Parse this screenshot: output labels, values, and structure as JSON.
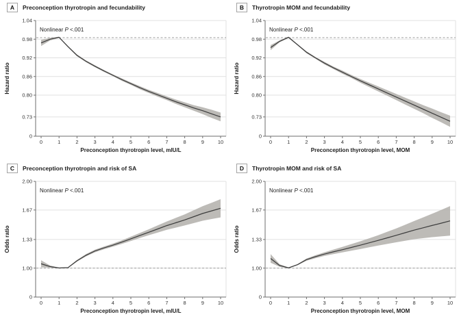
{
  "figure": {
    "name": "Thyrotropin, fecundability, and risk of SA — restricted cubic spline panels",
    "background": "#ffffff",
    "colors": {
      "curve": "#3c3c3c",
      "ci_band": "#b2afaa",
      "gridline": "#e0e0e0",
      "dashed_reference": "#9e9e9e",
      "axis": "#6e6e6e",
      "text": "#333333",
      "title_text": "#1c1c1c"
    },
    "panels": [
      {
        "letter": "A",
        "title": "Preconception thyrotropin and fecundability"
      },
      {
        "letter": "B",
        "title": "Thyrotropin MOM and fecundability"
      },
      {
        "letter": "C",
        "title": "Preconception thyrotropin and risk of SA"
      },
      {
        "letter": "D",
        "title": "Thyrotropin MOM and risk of SA"
      }
    ]
  },
  "chart_data": [
    {
      "panel": "A",
      "type": "line",
      "title": "Preconception thyrotropin and fecundability",
      "xlabel": "Preconception thyrotropin level, mIU/L",
      "ylabel": "Hazard ratio",
      "annotation": {
        "prefix": "Nonlinear",
        "p": "P",
        "suffix": "<.001"
      },
      "legend": "none",
      "grid": true,
      "xlim": [
        0,
        10
      ],
      "xticks": [
        "0",
        "1",
        "2",
        "3",
        "4",
        "5",
        "6",
        "7",
        "8",
        "9",
        "10"
      ],
      "yticks": [
        "1.04",
        "0.98",
        "0.92",
        "0.86",
        "0.80",
        "0.73"
      ],
      "zero_label": "0",
      "y_axis_break_to_zero": true,
      "ref_line": 0.985,
      "x": [
        0,
        0.5,
        1,
        1.5,
        2,
        2.5,
        3,
        3.5,
        4,
        4.5,
        5,
        5.5,
        6,
        6.5,
        7,
        7.5,
        8,
        8.5,
        9,
        9.5,
        10
      ],
      "y": [
        0.968,
        0.98,
        0.986,
        0.956,
        0.928,
        0.909,
        0.893,
        0.878,
        0.864,
        0.85,
        0.837,
        0.824,
        0.812,
        0.801,
        0.79,
        0.779,
        0.769,
        0.759,
        0.75,
        0.74,
        0.73
      ],
      "ci_lower": [
        0.958,
        0.976,
        0.984,
        0.954,
        0.925,
        0.906,
        0.89,
        0.875,
        0.861,
        0.846,
        0.833,
        0.819,
        0.807,
        0.795,
        0.784,
        0.772,
        0.761,
        0.75,
        0.739,
        0.727,
        0.716
      ],
      "ci_upper": [
        0.978,
        0.984,
        0.988,
        0.958,
        0.931,
        0.912,
        0.896,
        0.881,
        0.867,
        0.854,
        0.841,
        0.829,
        0.817,
        0.807,
        0.796,
        0.786,
        0.777,
        0.768,
        0.761,
        0.753,
        0.744
      ]
    },
    {
      "panel": "B",
      "type": "line",
      "title": "Thyrotropin MOM and fecundability",
      "xlabel": "Preconception thyrotropin level, MOM",
      "ylabel": "Hazard ratio",
      "annotation": {
        "prefix": "Nonlinear",
        "p": "P",
        "suffix": "<.001"
      },
      "legend": "none",
      "grid": true,
      "xlim": [
        0,
        10
      ],
      "xticks": [
        "0",
        "1",
        "2",
        "3",
        "4",
        "5",
        "6",
        "7",
        "8",
        "9",
        "10"
      ],
      "yticks": [
        "1.04",
        "0.98",
        "0.92",
        "0.86",
        "0.80",
        "0.73"
      ],
      "zero_label": "0",
      "y_axis_break_to_zero": true,
      "ref_line": 0.985,
      "x": [
        0,
        0.5,
        1,
        1.5,
        2,
        2.5,
        3,
        3.5,
        4,
        4.5,
        5,
        5.5,
        6,
        6.5,
        7,
        7.5,
        8,
        8.5,
        9,
        9.5,
        10
      ],
      "y": [
        0.953,
        0.973,
        0.986,
        0.962,
        0.938,
        0.92,
        0.903,
        0.888,
        0.874,
        0.86,
        0.846,
        0.833,
        0.82,
        0.807,
        0.794,
        0.781,
        0.768,
        0.755,
        0.742,
        0.729,
        0.716
      ],
      "ci_lower": [
        0.945,
        0.97,
        0.984,
        0.96,
        0.935,
        0.917,
        0.899,
        0.884,
        0.869,
        0.855,
        0.84,
        0.826,
        0.812,
        0.798,
        0.784,
        0.77,
        0.756,
        0.742,
        0.727,
        0.713,
        0.698
      ],
      "ci_upper": [
        0.961,
        0.976,
        0.988,
        0.964,
        0.941,
        0.923,
        0.907,
        0.892,
        0.879,
        0.865,
        0.852,
        0.84,
        0.828,
        0.816,
        0.804,
        0.792,
        0.78,
        0.768,
        0.757,
        0.745,
        0.734
      ]
    },
    {
      "panel": "C",
      "type": "line",
      "title": "Preconception thyrotropin and risk of SA",
      "xlabel": "Preconception thyrotropin level, mIU/L",
      "ylabel": "Odds ratio",
      "annotation": {
        "prefix": "Nonlinear",
        "p": "P",
        "suffix": "<.001"
      },
      "legend": "none",
      "grid": true,
      "xlim": [
        0,
        10
      ],
      "xticks": [
        "0",
        "1",
        "2",
        "3",
        "4",
        "5",
        "6",
        "7",
        "8",
        "9",
        "10"
      ],
      "yticks": [
        "2.00",
        "1.67",
        "1.33",
        "1.00"
      ],
      "zero_label": "0",
      "y_axis_break_to_zero": true,
      "ref_line": 1.0,
      "x": [
        0,
        0.5,
        1,
        1.5,
        2,
        2.5,
        3,
        3.5,
        4,
        4.5,
        5,
        5.5,
        6,
        6.5,
        7,
        7.5,
        8,
        8.5,
        9,
        9.5,
        10
      ],
      "y": [
        1.05,
        1.018,
        1.002,
        1.006,
        1.085,
        1.148,
        1.198,
        1.233,
        1.265,
        1.3,
        1.338,
        1.376,
        1.414,
        1.452,
        1.49,
        1.523,
        1.556,
        1.593,
        1.63,
        1.66,
        1.69
      ],
      "ci_lower": [
        1.01,
        1.006,
        0.998,
        1.002,
        1.075,
        1.135,
        1.183,
        1.217,
        1.247,
        1.279,
        1.313,
        1.347,
        1.38,
        1.411,
        1.442,
        1.467,
        1.492,
        1.519,
        1.546,
        1.566,
        1.585
      ],
      "ci_upper": [
        1.09,
        1.03,
        1.006,
        1.01,
        1.095,
        1.161,
        1.213,
        1.249,
        1.283,
        1.321,
        1.363,
        1.405,
        1.448,
        1.493,
        1.538,
        1.579,
        1.62,
        1.667,
        1.714,
        1.754,
        1.795
      ]
    },
    {
      "panel": "D",
      "type": "line",
      "title": "Thyrotropin MOM and risk of SA",
      "xlabel": "Preconception thyrotropin level, MOM",
      "ylabel": "Odds ratio",
      "annotation": {
        "prefix": "Nonlinear",
        "p": "P",
        "suffix": "<.001"
      },
      "legend": "none",
      "grid": true,
      "xlim": [
        0,
        10
      ],
      "xticks": [
        "0",
        "1",
        "2",
        "3",
        "4",
        "5",
        "6",
        "7",
        "8",
        "9",
        "10"
      ],
      "yticks": [
        "2.00",
        "1.67",
        "1.33",
        "1.00"
      ],
      "zero_label": "0",
      "y_axis_break_to_zero": true,
      "ref_line": 1.0,
      "x": [
        0,
        0.5,
        1,
        1.5,
        2,
        2.5,
        3,
        3.5,
        4,
        4.5,
        5,
        5.5,
        6,
        6.5,
        7,
        7.5,
        8,
        8.5,
        9,
        9.5,
        10
      ],
      "y": [
        1.112,
        1.03,
        1.003,
        1.04,
        1.098,
        1.132,
        1.162,
        1.188,
        1.213,
        1.239,
        1.265,
        1.292,
        1.32,
        1.349,
        1.378,
        1.408,
        1.438,
        1.465,
        1.492,
        1.518,
        1.545
      ],
      "ci_lower": [
        1.062,
        1.015,
        0.998,
        1.034,
        1.085,
        1.115,
        1.141,
        1.162,
        1.182,
        1.201,
        1.22,
        1.24,
        1.26,
        1.279,
        1.298,
        1.316,
        1.333,
        1.345,
        1.357,
        1.366,
        1.375
      ],
      "ci_upper": [
        1.162,
        1.045,
        1.008,
        1.046,
        1.111,
        1.149,
        1.183,
        1.214,
        1.244,
        1.277,
        1.31,
        1.344,
        1.38,
        1.419,
        1.458,
        1.5,
        1.543,
        1.585,
        1.627,
        1.67,
        1.715
      ]
    }
  ]
}
